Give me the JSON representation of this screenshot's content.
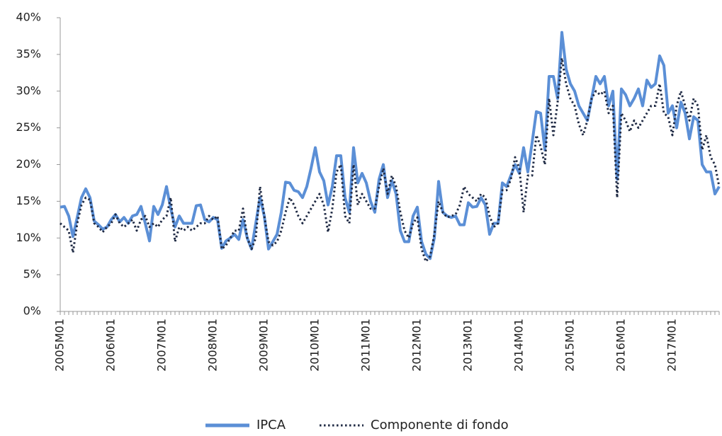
{
  "chart_data": {
    "type": "line",
    "categories": [
      "2005M01",
      null,
      null,
      null,
      null,
      null,
      null,
      null,
      null,
      null,
      null,
      null,
      "2006M01",
      null,
      null,
      null,
      null,
      null,
      null,
      null,
      null,
      null,
      null,
      null,
      "2007M01",
      null,
      null,
      null,
      null,
      null,
      null,
      null,
      null,
      null,
      null,
      null,
      "2008M01",
      null,
      null,
      null,
      null,
      null,
      null,
      null,
      null,
      null,
      null,
      null,
      "2009M01",
      null,
      null,
      null,
      null,
      null,
      null,
      null,
      null,
      null,
      null,
      null,
      "2010M01",
      null,
      null,
      null,
      null,
      null,
      null,
      null,
      null,
      null,
      null,
      null,
      "2011M01",
      null,
      null,
      null,
      null,
      null,
      null,
      null,
      null,
      null,
      null,
      null,
      "2012M01",
      null,
      null,
      null,
      null,
      null,
      null,
      null,
      null,
      null,
      null,
      null,
      "2013M01",
      null,
      null,
      null,
      null,
      null,
      null,
      null,
      null,
      null,
      null,
      null,
      "2014M01",
      null,
      null,
      null,
      null,
      null,
      null,
      null,
      null,
      null,
      null,
      null,
      "2015M01",
      null,
      null,
      null,
      null,
      null,
      null,
      null,
      null,
      null,
      null,
      null,
      "2016M01",
      null,
      null,
      null,
      null,
      null,
      null,
      null,
      null,
      null,
      null,
      null,
      "2017M01",
      null,
      null,
      null,
      null,
      null,
      null,
      null,
      null,
      null,
      null,
      null
    ],
    "series": [
      {
        "name": "IPCA",
        "color": "#5b8fd6",
        "style": "solid",
        "values": [
          14.2,
          14.3,
          13.0,
          10.2,
          12.8,
          15.5,
          16.7,
          15.5,
          12.3,
          11.8,
          11.2,
          11.5,
          12.5,
          13.2,
          12.2,
          12.8,
          12.0,
          13.0,
          13.2,
          14.3,
          12.0,
          9.6,
          14.3,
          13.2,
          14.5,
          17.0,
          14.0,
          11.5,
          13.0,
          12.0,
          12.0,
          12.0,
          14.4,
          14.5,
          12.5,
          12.2,
          12.8,
          12.5,
          8.6,
          9.6,
          10.0,
          10.5,
          9.8,
          12.5,
          10.0,
          8.5,
          12.0,
          15.5,
          13.0,
          8.5,
          9.5,
          10.5,
          13.5,
          17.6,
          17.5,
          16.5,
          16.3,
          15.5,
          17.0,
          19.5,
          22.3,
          19.0,
          17.8,
          14.5,
          17.0,
          21.2,
          21.2,
          15.5,
          13.5,
          22.3,
          17.5,
          18.8,
          17.5,
          15.0,
          13.5,
          18.0,
          20.0,
          15.5,
          17.8,
          16.0,
          11.0,
          9.5,
          9.5,
          13.0,
          14.2,
          9.5,
          7.8,
          7.2,
          10.0,
          17.7,
          13.5,
          13.0,
          12.8,
          13.0,
          11.8,
          11.8,
          14.8,
          14.2,
          14.3,
          15.5,
          14.5,
          10.5,
          12.0,
          12.0,
          17.5,
          17.0,
          18.5,
          20.0,
          18.8,
          22.3,
          19.0,
          23.0,
          27.2,
          27.0,
          22.0,
          32.0,
          32.0,
          29.0,
          38.0,
          33.0,
          31.0,
          30.0,
          28.0,
          27.0,
          26.0,
          29.0,
          32.0,
          31.0,
          32.0,
          28.0,
          30.0,
          18.0,
          30.3,
          29.5,
          28.0,
          29.0,
          30.3,
          28.0,
          31.5,
          30.5,
          31.0,
          34.8,
          33.5,
          27.0,
          28.0,
          25.0,
          28.5,
          27.0,
          23.5,
          26.5,
          26.0,
          20.0,
          19.0,
          19.0,
          16.0,
          17.0
        ]
      },
      {
        "name": "Componente di fondo",
        "color": "#1f2a44",
        "style": "dotted",
        "values": [
          12.0,
          11.5,
          11.0,
          8.0,
          12.0,
          14.5,
          15.5,
          15.2,
          12.0,
          11.5,
          10.8,
          11.5,
          12.0,
          13.2,
          12.0,
          11.5,
          12.0,
          12.5,
          11.0,
          12.5,
          13.0,
          11.5,
          12.0,
          11.5,
          12.5,
          13.0,
          15.5,
          9.5,
          11.5,
          11.0,
          11.5,
          11.0,
          11.5,
          12.0,
          12.0,
          13.0,
          12.5,
          13.0,
          8.5,
          9.0,
          10.0,
          11.0,
          11.0,
          14.0,
          10.0,
          8.5,
          10.0,
          17.0,
          13.0,
          9.5,
          9.0,
          9.5,
          11.0,
          13.5,
          15.5,
          14.5,
          13.0,
          12.0,
          13.0,
          14.0,
          15.0,
          16.0,
          14.5,
          10.8,
          14.0,
          19.0,
          20.0,
          13.0,
          12.0,
          20.0,
          14.5,
          16.0,
          15.0,
          14.0,
          14.0,
          17.0,
          19.5,
          16.0,
          18.5,
          17.0,
          13.5,
          11.0,
          10.0,
          12.0,
          12.8,
          8.5,
          6.8,
          7.5,
          10.5,
          15.0,
          13.5,
          12.8,
          13.0,
          13.2,
          14.5,
          17.0,
          16.0,
          15.5,
          15.0,
          16.0,
          15.5,
          13.0,
          11.5,
          12.0,
          16.5,
          16.5,
          18.0,
          21.0,
          19.5,
          13.5,
          18.5,
          18.5,
          24.0,
          22.5,
          20.0,
          29.0,
          24.0,
          28.5,
          34.5,
          31.0,
          29.0,
          28.0,
          25.5,
          24.0,
          26.0,
          29.0,
          30.0,
          29.5,
          30.0,
          27.0,
          28.0,
          15.5,
          27.0,
          26.0,
          24.5,
          26.0,
          25.0,
          26.0,
          27.0,
          28.0,
          28.0,
          31.0,
          27.0,
          26.5,
          24.0,
          28.0,
          30.0,
          28.0,
          26.0,
          29.0,
          28.0,
          22.0,
          24.0,
          21.0,
          20.0,
          17.0
        ]
      }
    ],
    "ylim": [
      0,
      40
    ],
    "yticks": [
      {
        "value": 0,
        "label": "0%"
      },
      {
        "value": 5,
        "label": "5%"
      },
      {
        "value": 10,
        "label": "10%"
      },
      {
        "value": 15,
        "label": "15%"
      },
      {
        "value": 20,
        "label": "20%"
      },
      {
        "value": 25,
        "label": "25%"
      },
      {
        "value": 30,
        "label": "30%"
      },
      {
        "value": 35,
        "label": "35%"
      },
      {
        "value": 40,
        "label": "40%"
      }
    ],
    "grid": false,
    "legend": "bottom"
  }
}
